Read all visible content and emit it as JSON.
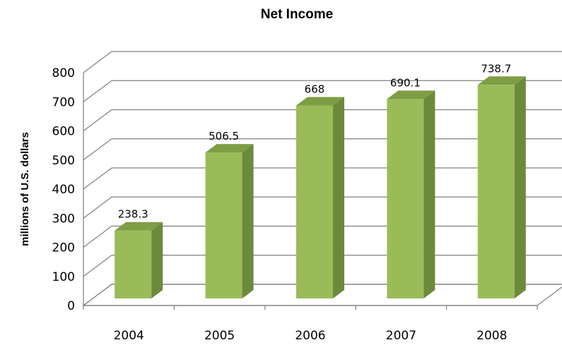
{
  "chart_data": {
    "type": "bar",
    "title": "Net Income",
    "xlabel": "",
    "ylabel": "millions of U.S. dollars",
    "categories": [
      "2004",
      "2005",
      "2006",
      "2007",
      "2008"
    ],
    "values": [
      238.3,
      506.5,
      668,
      690.1,
      738.7
    ],
    "data_labels": [
      "238.3",
      "506.5",
      "668",
      "690.1",
      "738.7"
    ],
    "ylim": [
      0,
      800
    ],
    "yticks": [
      "0",
      "100",
      "200",
      "300",
      "400",
      "500",
      "600",
      "700",
      "800"
    ],
    "grid": true,
    "legend": "none",
    "style": "3d-column"
  },
  "colors": {
    "bar_front": "#9bbb59",
    "bar_side": "#6b8a3b",
    "bar_top": "#7e9e45",
    "gridline": "#7f7f7f"
  }
}
